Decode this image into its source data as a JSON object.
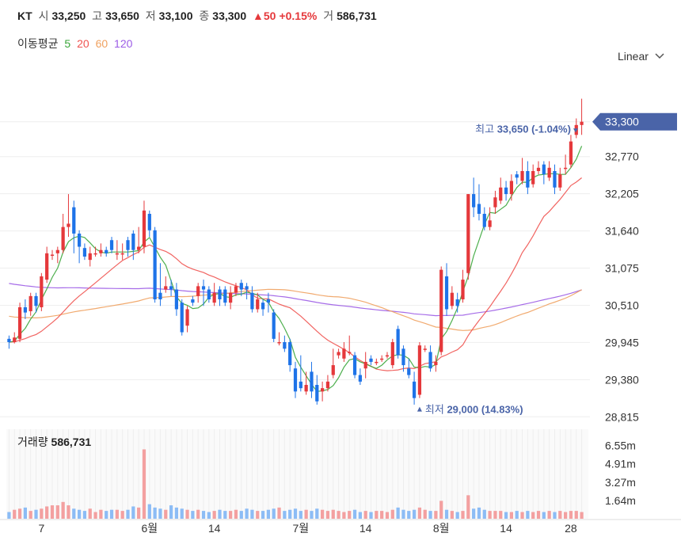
{
  "header": {
    "ticker": "KT",
    "open_label": "시",
    "open": "33,250",
    "high_label": "고",
    "high": "33,650",
    "low_label": "저",
    "low": "33,100",
    "close_label": "종",
    "close": "33,300",
    "change": "▲50",
    "change_pct": "+0.15%",
    "volume_label": "거",
    "volume": "586,731"
  },
  "moving_average": {
    "label": "이동평균",
    "periods": [
      {
        "value": "5",
        "color": "#3aa63a"
      },
      {
        "value": "20",
        "color": "#ef5350"
      },
      {
        "value": "60",
        "color": "#f0a15f"
      },
      {
        "value": "120",
        "color": "#9c5ce6"
      }
    ]
  },
  "scale_selector": {
    "label": "Linear",
    "icon": "chevron-down-icon"
  },
  "colors": {
    "up": "#e5383b",
    "down": "#1e73e8",
    "grid": "#eeeeee",
    "price_tag": "#4a64a8"
  },
  "chart_data": {
    "type": "candlestick",
    "ylim": [
      28650,
      33850
    ],
    "y_ticks": [
      "33,300",
      "32,770",
      "32,205",
      "31,640",
      "31,075",
      "30,510",
      "29,945",
      "29,380",
      "28,815"
    ],
    "y_tick_values": [
      33300,
      32770,
      32205,
      31640,
      31075,
      30510,
      29945,
      29380,
      28815
    ],
    "x_ticks": [
      "7",
      "6월",
      "14",
      "7월",
      "14",
      "8월",
      "14",
      "28"
    ],
    "x_tick_index": [
      6,
      26,
      38,
      54,
      66,
      80,
      92,
      104
    ],
    "current_price": "33,300",
    "annotation_high": {
      "prefix": "최고",
      "text": "33,650 (-1.04%)",
      "index": 104
    },
    "annotation_low": {
      "prefix": "최저",
      "text": "29,000 (14.83%)",
      "index": 76
    },
    "volume_label": "거래량",
    "volume_value": "586,731",
    "volume_ticks": [
      "6.55m",
      "4.91m",
      "3.27m",
      "1.64m"
    ],
    "volume_tick_values": [
      6550000,
      4910000,
      3270000,
      1640000
    ],
    "volume_max": 8000000,
    "candles": [
      [
        30000,
        29950,
        29850,
        30050
      ],
      [
        29950,
        30020,
        29930,
        30100
      ],
      [
        30000,
        30480,
        29950,
        30550
      ],
      [
        30480,
        30400,
        30300,
        30600
      ],
      [
        30420,
        30650,
        30350,
        30700
      ],
      [
        30650,
        30500,
        30400,
        30700
      ],
      [
        30480,
        30950,
        30420,
        31000
      ],
      [
        30900,
        31300,
        30850,
        31400
      ],
      [
        31280,
        31280,
        31200,
        31350
      ],
      [
        31300,
        31350,
        31150,
        31400
      ],
      [
        31350,
        31700,
        31300,
        31900
      ],
      [
        31700,
        31750,
        31550,
        32200
      ],
      [
        32000,
        31600,
        31300,
        32100
      ],
      [
        31600,
        31400,
        31150,
        31650
      ],
      [
        31380,
        31250,
        31200,
        31450
      ],
      [
        31200,
        31300,
        31100,
        31400
      ],
      [
        31300,
        31300,
        31250,
        31400
      ],
      [
        31300,
        31350,
        31250,
        31450
      ],
      [
        31350,
        31300,
        31250,
        31400
      ],
      [
        31500,
        31350,
        31300,
        31550
      ],
      [
        31300,
        31300,
        31200,
        31500
      ],
      [
        31300,
        31300,
        31200,
        31450
      ],
      [
        31500,
        31350,
        31250,
        31550
      ],
      [
        31600,
        31350,
        31200,
        31650
      ],
      [
        31350,
        31400,
        31300,
        31700
      ],
      [
        31400,
        31950,
        31300,
        32100
      ],
      [
        31900,
        31650,
        31550,
        31950
      ],
      [
        31650,
        30600,
        30550,
        31700
      ],
      [
        30700,
        30600,
        30500,
        31150
      ],
      [
        30750,
        30800,
        30700,
        30950
      ],
      [
        30800,
        30750,
        30650,
        30900
      ],
      [
        30750,
        30450,
        30350,
        30850
      ],
      [
        30550,
        30100,
        30050,
        30600
      ],
      [
        30200,
        30450,
        30100,
        30500
      ],
      [
        30600,
        30550,
        30500,
        30650
      ],
      [
        30650,
        30800,
        30550,
        30850
      ],
      [
        30800,
        30750,
        30500,
        30900
      ],
      [
        30750,
        30600,
        30550,
        30800
      ],
      [
        30550,
        30700,
        30500,
        30850
      ],
      [
        30750,
        30600,
        30500,
        30800
      ],
      [
        30750,
        30550,
        30500,
        30800
      ],
      [
        30550,
        30700,
        30450,
        30800
      ],
      [
        30700,
        30800,
        30650,
        30850
      ],
      [
        30850,
        30750,
        30650,
        30900
      ],
      [
        30800,
        30750,
        30600,
        30850
      ],
      [
        30700,
        30450,
        30400,
        30800
      ],
      [
        30450,
        30600,
        30400,
        30700
      ],
      [
        30550,
        30450,
        30350,
        30600
      ],
      [
        30600,
        30550,
        30400,
        30700
      ],
      [
        30400,
        30000,
        29950,
        30450
      ],
      [
        29950,
        29950,
        29900,
        30100
      ],
      [
        29950,
        29850,
        29800,
        30050
      ],
      [
        29950,
        29600,
        29500,
        30000
      ],
      [
        29550,
        29200,
        29100,
        29650
      ],
      [
        29350,
        29250,
        29200,
        29750
      ],
      [
        29200,
        29300,
        29150,
        29500
      ],
      [
        29500,
        29200,
        29100,
        29650
      ],
      [
        29300,
        29050,
        29000,
        29450
      ],
      [
        29200,
        29250,
        29050,
        29350
      ],
      [
        29250,
        29350,
        29200,
        29450
      ],
      [
        29450,
        29600,
        29400,
        29850
      ],
      [
        29750,
        29800,
        29700,
        29850
      ],
      [
        29700,
        29850,
        29650,
        29950
      ],
      [
        29800,
        29800,
        29750,
        30050
      ],
      [
        29750,
        29450,
        29400,
        29800
      ],
      [
        29450,
        29350,
        29300,
        29550
      ],
      [
        29550,
        29650,
        29400,
        29800
      ],
      [
        29700,
        29650,
        29600,
        29750
      ],
      [
        29650,
        29650,
        29600,
        29700
      ],
      [
        29700,
        29700,
        29650,
        29750
      ],
      [
        29750,
        29750,
        29700,
        29800
      ],
      [
        29600,
        29950,
        29550,
        30000
      ],
      [
        30150,
        29750,
        29700,
        30200
      ],
      [
        29850,
        29600,
        29500,
        29900
      ],
      [
        29550,
        29450,
        29400,
        29700
      ],
      [
        29350,
        29100,
        29000,
        29500
      ],
      [
        29150,
        29900,
        29100,
        29950
      ],
      [
        29850,
        29850,
        29800,
        29900
      ],
      [
        29800,
        29550,
        29500,
        29900
      ],
      [
        29600,
        29650,
        29500,
        29750
      ],
      [
        29800,
        31050,
        29750,
        31100
      ],
      [
        30950,
        30450,
        30350,
        31150
      ],
      [
        30500,
        30700,
        30450,
        30800
      ],
      [
        30600,
        30500,
        30400,
        30700
      ],
      [
        30600,
        30900,
        30550,
        31050
      ],
      [
        31000,
        32200,
        30900,
        32200
      ],
      [
        32200,
        32000,
        31850,
        32450
      ],
      [
        32050,
        31900,
        31800,
        32350
      ],
      [
        31900,
        31700,
        31650,
        32000
      ],
      [
        31700,
        31800,
        31650,
        32000
      ],
      [
        32000,
        32150,
        31900,
        32250
      ],
      [
        32100,
        32300,
        32050,
        32450
      ],
      [
        32300,
        32200,
        32100,
        32400
      ],
      [
        32200,
        32400,
        32100,
        32500
      ],
      [
        32500,
        32450,
        32350,
        32550
      ],
      [
        32400,
        32550,
        32350,
        32750
      ],
      [
        32550,
        32300,
        32200,
        32700
      ],
      [
        32350,
        32550,
        32300,
        32650
      ],
      [
        32550,
        32600,
        32500,
        32700
      ],
      [
        32650,
        32500,
        32350,
        32700
      ],
      [
        32450,
        32600,
        32400,
        32700
      ],
      [
        32550,
        32300,
        32200,
        32650
      ],
      [
        32300,
        32500,
        32250,
        32600
      ],
      [
        32600,
        32600,
        32500,
        32800
      ],
      [
        32650,
        33000,
        32600,
        33100
      ],
      [
        33100,
        33250,
        33050,
        33350
      ],
      [
        33250,
        33300,
        33100,
        33650
      ]
    ],
    "volumes": [
      0.6,
      0.8,
      0.9,
      1.0,
      0.7,
      0.8,
      0.9,
      1.1,
      1.2,
      1.2,
      1.5,
      1.2,
      0.9,
      0.8,
      0.7,
      0.9,
      0.6,
      0.8,
      0.7,
      0.8,
      0.8,
      0.7,
      0.8,
      1.1,
      1.0,
      6.2,
      1.3,
      1.0,
      0.9,
      0.8,
      1.2,
      1.0,
      0.9,
      0.8,
      0.7,
      0.8,
      0.7,
      0.6,
      0.7,
      0.8,
      0.7,
      0.7,
      0.8,
      0.7,
      0.9,
      0.8,
      0.7,
      0.7,
      0.8,
      0.9,
      1.0,
      0.7,
      0.8,
      0.9,
      0.7,
      0.8,
      0.7,
      0.9,
      0.8,
      0.7,
      0.8,
      0.7,
      0.6,
      0.7,
      0.8,
      0.6,
      0.7,
      0.6,
      0.7,
      0.7,
      0.6,
      0.8,
      1.0,
      0.8,
      0.7,
      0.8,
      1.0,
      0.8,
      0.7,
      0.7,
      1.6,
      0.8,
      0.7,
      0.6,
      0.7,
      2.1,
      0.9,
      1.0,
      0.8,
      0.7,
      0.7,
      0.7,
      0.6,
      0.6,
      0.7,
      0.6,
      0.7,
      0.6,
      0.7,
      0.6,
      0.7,
      0.6,
      0.7,
      0.6,
      0.7,
      0.7,
      0.6
    ]
  }
}
